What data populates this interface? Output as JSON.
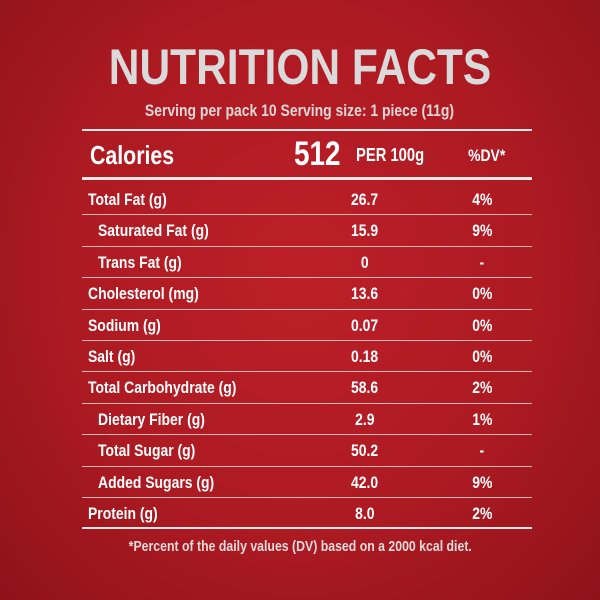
{
  "title": "NUTRITION FACTS",
  "serving": "Serving per pack 10 Serving size: 1 piece (11g)",
  "calories": {
    "label": "Calories",
    "value": "512",
    "per": "PER 100g",
    "dv_header": "%DV*"
  },
  "rows": [
    {
      "name": "Total Fat (g)",
      "value": "26.7",
      "dv": "4%"
    },
    {
      "name": "Saturated Fat (g)",
      "value": "15.9",
      "dv": "9%"
    },
    {
      "name": "Trans Fat (g)",
      "value": "0",
      "dv": "-"
    },
    {
      "name": "Cholesterol (mg)",
      "value": "13.6",
      "dv": "0%"
    },
    {
      "name": "Sodium (g)",
      "value": "0.07",
      "dv": "0%"
    },
    {
      "name": "Salt (g)",
      "value": "0.18",
      "dv": "0%"
    },
    {
      "name": "Total Carbohydrate (g)",
      "value": "58.6",
      "dv": "2%"
    },
    {
      "name": "Dietary Fiber (g)",
      "value": "2.9",
      "dv": "1%"
    },
    {
      "name": "Total Sugar (g)",
      "value": "50.2",
      "dv": "-"
    },
    {
      "name": "Added Sugars (g)",
      "value": "42.0",
      "dv": "9%"
    },
    {
      "name": "Protein (g)",
      "value": "8.0",
      "dv": "2%"
    }
  ],
  "footnote": "*Percent of the daily values (DV) based on a 2000 kcal diet."
}
